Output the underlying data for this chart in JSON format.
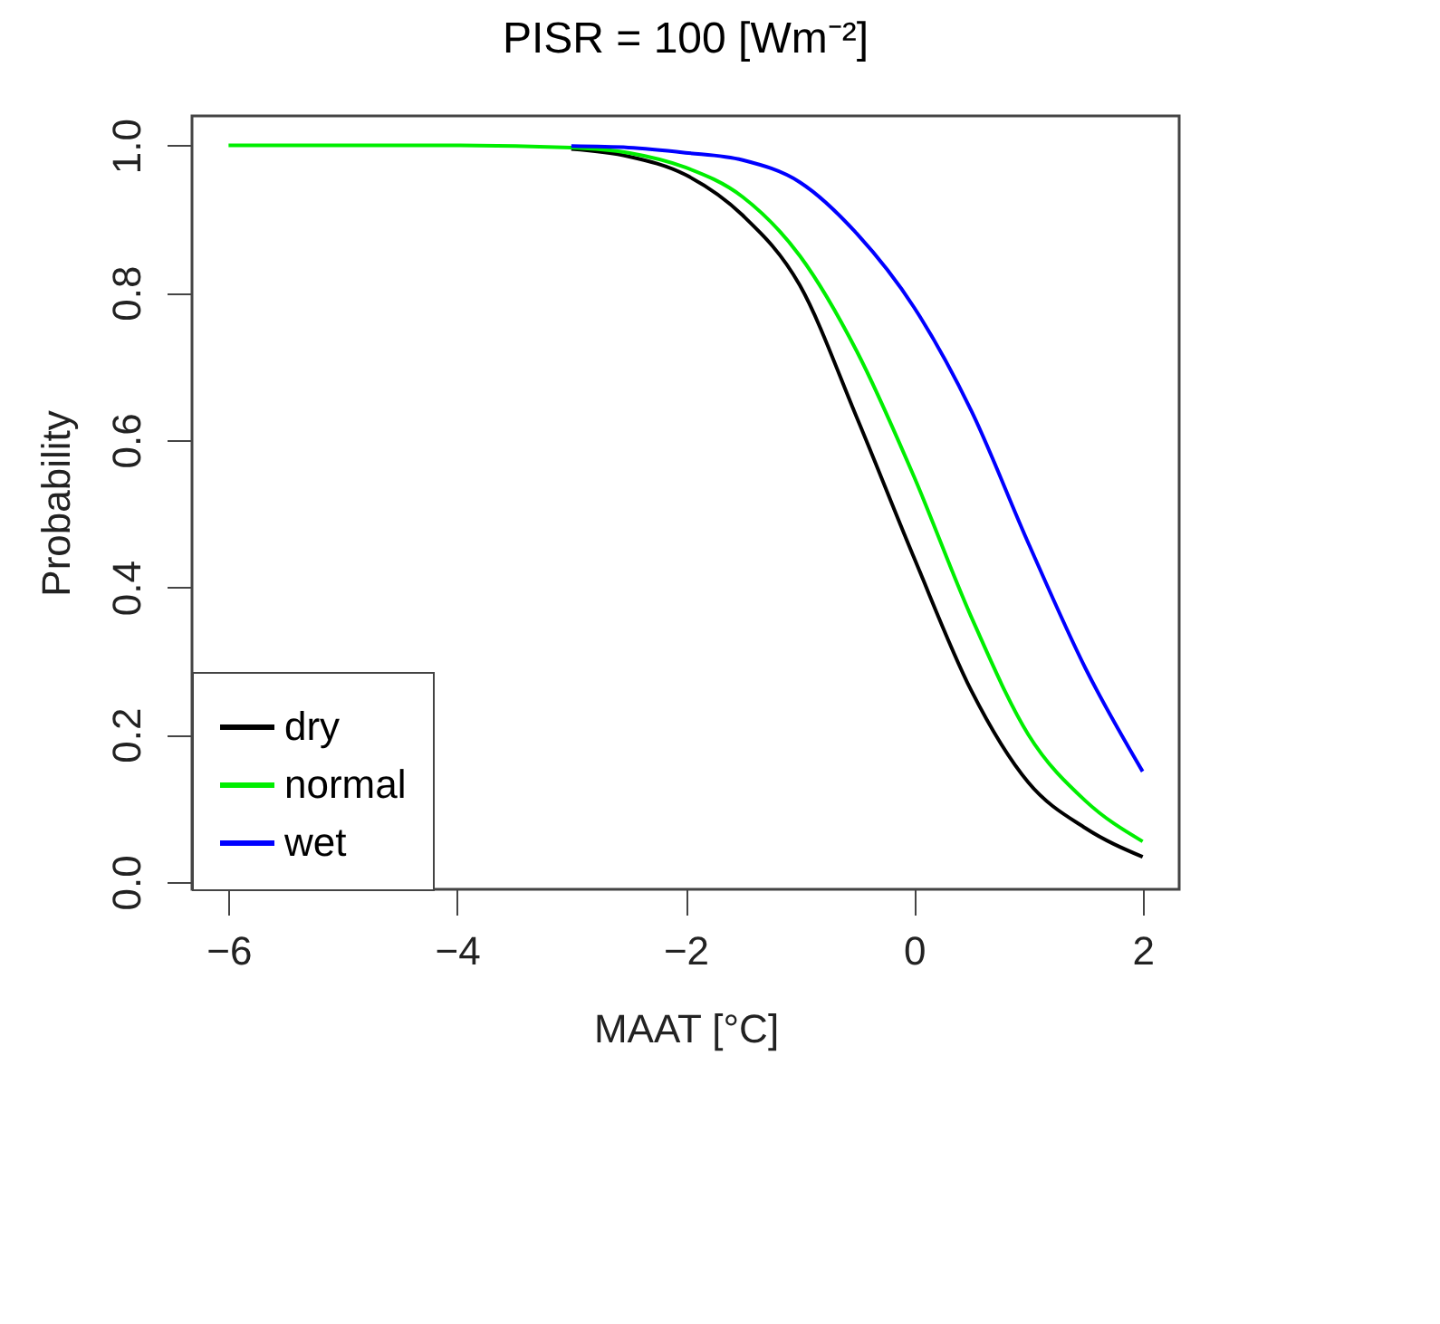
{
  "chart_data": {
    "type": "line",
    "title": "PISR = 100 [Wm⁻²]",
    "xlabel": "MAAT [°C]",
    "ylabel": "Probability",
    "x": [
      -6,
      -5,
      -4,
      -3,
      -2.5,
      -2,
      -1.5,
      -1,
      -0.5,
      0,
      0.5,
      1,
      1.5,
      2
    ],
    "series": [
      {
        "name": "dry",
        "color": "#000000",
        "values": [
          null,
          null,
          null,
          0.995,
          0.985,
          0.96,
          0.905,
          0.81,
          0.63,
          0.44,
          0.26,
          0.135,
          0.073,
          0.034
        ]
      },
      {
        "name": "normal",
        "color": "#00ee00",
        "values": [
          1.0,
          1.0,
          1.0,
          0.997,
          0.99,
          0.97,
          0.93,
          0.85,
          0.72,
          0.55,
          0.36,
          0.2,
          0.11,
          0.055
        ]
      },
      {
        "name": "wet",
        "color": "#0000ff",
        "values": [
          null,
          null,
          null,
          0.999,
          0.997,
          0.99,
          0.98,
          0.95,
          0.88,
          0.78,
          0.64,
          0.46,
          0.29,
          0.15
        ]
      }
    ],
    "xlim": [
      -6.32,
      2.32
    ],
    "ylim": [
      -0.01,
      1.04
    ],
    "xticks": [
      -6,
      -4,
      -2,
      0,
      2
    ],
    "yticks": [
      {
        "value": 0,
        "label": "0.0"
      },
      0.2,
      0.4,
      0.6,
      0.8,
      {
        "value": 1,
        "label": "1.0"
      }
    ],
    "grid": false,
    "legend": "bottom left",
    "line_style": "solid",
    "marker": "none"
  }
}
